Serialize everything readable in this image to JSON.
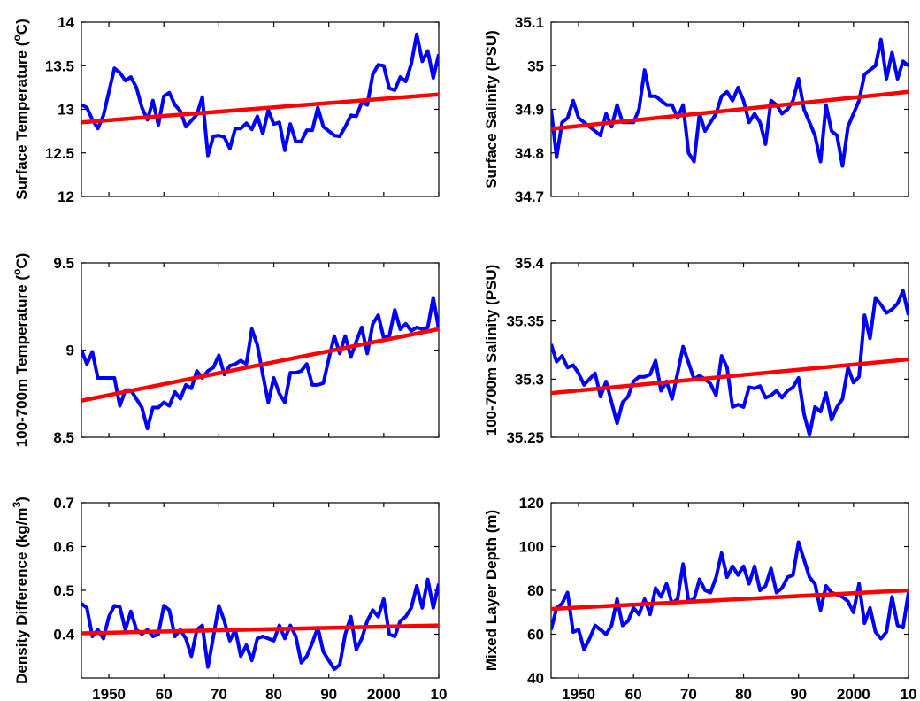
{
  "colors": {
    "data_line": "#0000ff",
    "trend_line": "#ff0000",
    "axes": "#000000"
  },
  "chart_data": [
    {
      "type": "line",
      "ylabel": "Surface Temperature (°C)",
      "ylabel_parts": [
        "Surface Temperature (",
        "o",
        "C)"
      ],
      "xlim": [
        1945,
        2010
      ],
      "ylim": [
        12,
        14
      ],
      "yticks": [
        12,
        12.5,
        13,
        13.5,
        14
      ],
      "ytick_labels": [
        "12",
        "12.5",
        "13",
        "13.5",
        "14"
      ],
      "x": [
        1945,
        1946,
        1947,
        1948,
        1949,
        1950,
        1951,
        1952,
        1953,
        1954,
        1955,
        1956,
        1957,
        1958,
        1959,
        1960,
        1961,
        1962,
        1963,
        1964,
        1965,
        1966,
        1967,
        1968,
        1969,
        1970,
        1971,
        1972,
        1973,
        1974,
        1975,
        1976,
        1977,
        1978,
        1979,
        1980,
        1981,
        1982,
        1983,
        1984,
        1985,
        1986,
        1987,
        1988,
        1989,
        1990,
        1991,
        1992,
        1993,
        1994,
        1995,
        1996,
        1997,
        1998,
        1999,
        2000,
        2001,
        2002,
        2003,
        2004,
        2005,
        2006,
        2007,
        2008,
        2009,
        2010
      ],
      "series": [
        {
          "values": [
            13.05,
            13.02,
            12.88,
            12.78,
            12.93,
            13.2,
            13.47,
            13.42,
            13.33,
            13.37,
            13.25,
            13.02,
            12.88,
            13.1,
            12.82,
            13.15,
            13.19,
            13.05,
            12.98,
            12.8,
            12.87,
            12.94,
            13.14,
            12.47,
            12.69,
            12.7,
            12.68,
            12.55,
            12.78,
            12.78,
            12.84,
            12.77,
            12.92,
            12.72,
            12.99,
            12.83,
            12.85,
            12.53,
            12.83,
            12.63,
            12.63,
            12.76,
            12.76,
            13.02,
            12.8,
            12.75,
            12.7,
            12.69,
            12.8,
            12.93,
            12.92,
            13.08,
            13.05,
            13.4,
            13.51,
            13.5,
            13.24,
            13.22,
            13.37,
            13.32,
            13.52,
            13.86,
            13.55,
            13.67,
            13.36,
            13.63
          ]
        }
      ],
      "trend": {
        "x": [
          1945,
          2010
        ],
        "y": [
          12.85,
          13.17
        ]
      }
    },
    {
      "type": "line",
      "ylabel": "Surface Salinity (PSU)",
      "xlim": [
        1945,
        2010
      ],
      "ylim": [
        34.7,
        35.1
      ],
      "yticks": [
        34.7,
        34.8,
        34.9,
        35,
        35.1
      ],
      "ytick_labels": [
        "34.7",
        "34.8",
        "34.9",
        "35",
        "35.1"
      ],
      "x": [
        1945,
        1946,
        1947,
        1948,
        1949,
        1950,
        1951,
        1952,
        1953,
        1954,
        1955,
        1956,
        1957,
        1958,
        1959,
        1960,
        1961,
        1962,
        1963,
        1964,
        1965,
        1966,
        1967,
        1968,
        1969,
        1970,
        1971,
        1972,
        1973,
        1974,
        1975,
        1976,
        1977,
        1978,
        1979,
        1980,
        1981,
        1982,
        1983,
        1984,
        1985,
        1986,
        1987,
        1988,
        1989,
        1990,
        1991,
        1992,
        1993,
        1994,
        1995,
        1996,
        1997,
        1998,
        1999,
        2000,
        2001,
        2002,
        2003,
        2004,
        2005,
        2006,
        2007,
        2008,
        2009,
        2010
      ],
      "series": [
        {
          "values": [
            34.9,
            34.79,
            34.87,
            34.88,
            34.92,
            34.88,
            34.87,
            34.86,
            34.85,
            34.84,
            34.89,
            34.86,
            34.91,
            34.87,
            34.87,
            34.87,
            34.9,
            34.99,
            34.93,
            34.93,
            34.92,
            34.91,
            34.91,
            34.88,
            34.91,
            34.8,
            34.78,
            34.89,
            34.85,
            34.87,
            34.89,
            34.93,
            34.94,
            34.92,
            34.95,
            34.92,
            34.87,
            34.89,
            34.87,
            34.82,
            34.92,
            34.91,
            34.89,
            34.9,
            34.92,
            34.97,
            34.9,
            34.87,
            34.84,
            34.78,
            34.91,
            34.85,
            34.84,
            34.77,
            34.86,
            34.89,
            34.92,
            34.98,
            34.99,
            35,
            35.06,
            34.97,
            35.03,
            34.97,
            35.01,
            35
          ]
        }
      ],
      "trend": {
        "x": [
          1945,
          2010
        ],
        "y": [
          34.855,
          34.94
        ]
      }
    },
    {
      "type": "line",
      "ylabel": "100-700m Temperature (°C)",
      "ylabel_parts": [
        "100-700m Temperature (",
        "o",
        "C)"
      ],
      "xlim": [
        1945,
        2010
      ],
      "ylim": [
        8.5,
        9.5
      ],
      "yticks": [
        8.5,
        9,
        9.5
      ],
      "ytick_labels": [
        "8.5",
        "9",
        "9.5"
      ],
      "x": [
        1945,
        1946,
        1947,
        1948,
        1949,
        1950,
        1951,
        1952,
        1953,
        1954,
        1955,
        1956,
        1957,
        1958,
        1959,
        1960,
        1961,
        1962,
        1963,
        1964,
        1965,
        1966,
        1967,
        1968,
        1969,
        1970,
        1971,
        1972,
        1973,
        1974,
        1975,
        1976,
        1977,
        1978,
        1979,
        1980,
        1981,
        1982,
        1983,
        1984,
        1985,
        1986,
        1987,
        1988,
        1989,
        1990,
        1991,
        1992,
        1993,
        1994,
        1995,
        1996,
        1997,
        1998,
        1999,
        2000,
        2001,
        2002,
        2003,
        2004,
        2005,
        2006,
        2007,
        2008,
        2009,
        2010
      ],
      "series": [
        {
          "values": [
            9.0,
            8.92,
            8.99,
            8.84,
            8.84,
            8.84,
            8.84,
            8.68,
            8.77,
            8.77,
            8.72,
            8.67,
            8.55,
            8.67,
            8.67,
            8.7,
            8.68,
            8.76,
            8.72,
            8.8,
            8.78,
            8.88,
            8.84,
            8.88,
            8.9,
            8.97,
            8.86,
            8.91,
            8.92,
            8.94,
            8.92,
            9.12,
            9.03,
            8.86,
            8.7,
            8.84,
            8.75,
            8.7,
            8.87,
            8.87,
            8.88,
            8.92,
            8.8,
            8.8,
            8.81,
            8.95,
            9.08,
            8.98,
            9.08,
            8.96,
            9.05,
            9.13,
            8.98,
            9.15,
            9.2,
            9.07,
            9.08,
            9.23,
            9.12,
            9.15,
            9.11,
            9.13,
            9.12,
            9.13,
            9.3,
            9.12
          ]
        }
      ],
      "trend": {
        "x": [
          1945,
          2010
        ],
        "y": [
          8.71,
          9.12
        ]
      }
    },
    {
      "type": "line",
      "ylabel": "100-700m Salinity (PSU)",
      "xlim": [
        1945,
        2010
      ],
      "ylim": [
        35.25,
        35.4
      ],
      "yticks": [
        35.25,
        35.3,
        35.35,
        35.4
      ],
      "ytick_labels": [
        "35.25",
        "35.3",
        "35.35",
        "35.4"
      ],
      "x": [
        1945,
        1946,
        1947,
        1948,
        1949,
        1950,
        1951,
        1952,
        1953,
        1954,
        1955,
        1956,
        1957,
        1958,
        1959,
        1960,
        1961,
        1962,
        1963,
        1964,
        1965,
        1966,
        1967,
        1968,
        1969,
        1970,
        1971,
        1972,
        1973,
        1974,
        1975,
        1976,
        1977,
        1978,
        1979,
        1980,
        1981,
        1982,
        1983,
        1984,
        1985,
        1986,
        1987,
        1988,
        1989,
        1990,
        1991,
        1992,
        1993,
        1994,
        1995,
        1996,
        1997,
        1998,
        1999,
        2000,
        2001,
        2002,
        2003,
        2004,
        2005,
        2006,
        2007,
        2008,
        2009,
        2010
      ],
      "series": [
        {
          "values": [
            35.33,
            35.315,
            35.32,
            35.31,
            35.312,
            35.305,
            35.295,
            35.3,
            35.305,
            35.285,
            35.298,
            35.28,
            35.262,
            35.28,
            35.285,
            35.298,
            35.302,
            35.302,
            35.304,
            35.316,
            35.29,
            35.298,
            35.283,
            35.305,
            35.328,
            35.314,
            35.3,
            35.303,
            35.3,
            35.296,
            35.286,
            35.32,
            35.31,
            35.276,
            35.278,
            35.276,
            35.293,
            35.292,
            35.294,
            35.284,
            35.286,
            35.29,
            35.284,
            35.29,
            35.293,
            35.301,
            35.27,
            35.252,
            35.276,
            35.272,
            35.288,
            35.265,
            35.276,
            35.283,
            35.31,
            35.297,
            35.302,
            35.355,
            35.335,
            35.37,
            35.364,
            35.357,
            35.36,
            35.365,
            35.376,
            35.355
          ]
        }
      ],
      "trend": {
        "x": [
          1945,
          2010
        ],
        "y": [
          35.288,
          35.317
        ]
      }
    },
    {
      "type": "line",
      "ylabel": "Density Difference (kg/m³)",
      "ylabel_parts": [
        "Density Difference (kg/m",
        "3",
        ")"
      ],
      "xlim": [
        1945,
        2010
      ],
      "ylim": [
        0.3,
        0.7
      ],
      "yticks": [
        0.4,
        0.5,
        0.6,
        0.7
      ],
      "ytick_labels": [
        "0.4",
        "0.5",
        "0.6",
        "0.7"
      ],
      "xticks": [
        1950,
        1960,
        1970,
        1980,
        1990,
        2000,
        2010
      ],
      "xtick_labels": [
        "1950",
        "60",
        "70",
        "80",
        "90",
        "2000",
        "10"
      ],
      "x": [
        1945,
        1946,
        1947,
        1948,
        1949,
        1950,
        1951,
        1952,
        1953,
        1954,
        1955,
        1956,
        1957,
        1958,
        1959,
        1960,
        1961,
        1962,
        1963,
        1964,
        1965,
        1966,
        1967,
        1968,
        1969,
        1970,
        1971,
        1972,
        1973,
        1974,
        1975,
        1976,
        1977,
        1978,
        1979,
        1980,
        1981,
        1982,
        1983,
        1984,
        1985,
        1986,
        1987,
        1988,
        1989,
        1990,
        1991,
        1992,
        1993,
        1994,
        1995,
        1996,
        1997,
        1998,
        1999,
        2000,
        2001,
        2002,
        2003,
        2004,
        2005,
        2006,
        2007,
        2008,
        2009,
        2010
      ],
      "series": [
        {
          "values": [
            0.47,
            0.46,
            0.395,
            0.41,
            0.39,
            0.44,
            0.465,
            0.462,
            0.41,
            0.452,
            0.41,
            0.4,
            0.41,
            0.395,
            0.4,
            0.465,
            0.455,
            0.395,
            0.41,
            0.39,
            0.35,
            0.41,
            0.42,
            0.325,
            0.395,
            0.465,
            0.43,
            0.385,
            0.41,
            0.35,
            0.375,
            0.34,
            0.39,
            0.395,
            0.39,
            0.385,
            0.42,
            0.39,
            0.42,
            0.395,
            0.335,
            0.35,
            0.38,
            0.415,
            0.36,
            0.34,
            0.32,
            0.33,
            0.4,
            0.44,
            0.365,
            0.39,
            0.43,
            0.455,
            0.44,
            0.48,
            0.4,
            0.395,
            0.43,
            0.44,
            0.46,
            0.51,
            0.46,
            0.525,
            0.46,
            0.515
          ]
        }
      ],
      "trend": {
        "x": [
          1945,
          2010
        ],
        "y": [
          0.402,
          0.42
        ]
      }
    },
    {
      "type": "line",
      "ylabel": "Mixed Layer Depth (m)",
      "xlim": [
        1945,
        2010
      ],
      "ylim": [
        40,
        120
      ],
      "yticks": [
        40,
        60,
        80,
        100,
        120
      ],
      "ytick_labels": [
        "40",
        "60",
        "80",
        "100",
        "120"
      ],
      "xticks": [
        1950,
        1960,
        1970,
        1980,
        1990,
        2000,
        2010
      ],
      "xtick_labels": [
        "1950",
        "60",
        "70",
        "80",
        "90",
        "2000",
        "10"
      ],
      "x": [
        1945,
        1946,
        1947,
        1948,
        1949,
        1950,
        1951,
        1952,
        1953,
        1954,
        1955,
        1956,
        1957,
        1958,
        1959,
        1960,
        1961,
        1962,
        1963,
        1964,
        1965,
        1966,
        1967,
        1968,
        1969,
        1970,
        1971,
        1972,
        1973,
        1974,
        1975,
        1976,
        1977,
        1978,
        1979,
        1980,
        1981,
        1982,
        1983,
        1984,
        1985,
        1986,
        1987,
        1988,
        1989,
        1990,
        1991,
        1992,
        1993,
        1994,
        1995,
        1996,
        1997,
        1998,
        1999,
        2000,
        2001,
        2002,
        2003,
        2004,
        2005,
        2006,
        2007,
        2008,
        2009,
        2010
      ],
      "series": [
        {
          "values": [
            62,
            72,
            74,
            79,
            61,
            62,
            53,
            58,
            64,
            62,
            60,
            64,
            76,
            64,
            66,
            72,
            69,
            76,
            69,
            81,
            77,
            83,
            74,
            76,
            92,
            75,
            76,
            85,
            80,
            79,
            86,
            97,
            86,
            91,
            87,
            91,
            83,
            91,
            80,
            82,
            90,
            79,
            81,
            86,
            87,
            102,
            94,
            86,
            83,
            71,
            82,
            79,
            78,
            77,
            75,
            70,
            83,
            65,
            72,
            61,
            58,
            61,
            77,
            64,
            63,
            79
          ]
        }
      ],
      "trend": {
        "x": [
          1945,
          2010
        ],
        "y": [
          71.5,
          80
        ]
      }
    }
  ]
}
